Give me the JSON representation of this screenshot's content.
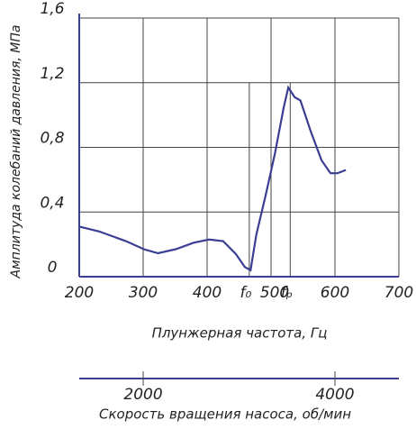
{
  "chart_data": {
    "type": "line",
    "xlabel": "Плунжерная частота, Гц",
    "ylabel": "Амплитуда колебаний давления, МПа",
    "x2label": "Скорость вращения насоса, об/мин",
    "series": [
      {
        "color": "#3b3f94",
        "x": [
          200,
          231,
          273,
          301,
          323,
          351,
          379,
          403,
          425,
          445,
          459,
          468,
          477,
          492,
          506,
          520,
          527,
          537,
          546,
          562,
          579,
          593,
          604,
          617
        ],
        "values": [
          0.31,
          0.28,
          0.22,
          0.17,
          0.145,
          0.17,
          0.21,
          0.23,
          0.22,
          0.14,
          0.06,
          0.04,
          0.26,
          0.51,
          0.76,
          1.05,
          1.17,
          1.11,
          1.09,
          0.9,
          0.72,
          0.64,
          0.64,
          0.66
        ]
      }
    ],
    "xlim": [
      200,
      700
    ],
    "xticks": [
      200,
      300,
      400,
      500,
      600,
      700
    ],
    "ylim": [
      0,
      1.6
    ],
    "yticks": [
      0,
      {
        "value": 0.4,
        "label": "0,4"
      },
      {
        "value": 0.8,
        "label": "0,8"
      },
      {
        "value": 1.2,
        "label": "1,2"
      },
      {
        "value": 1.6,
        "label": "1,6"
      }
    ],
    "x2lim": [
      1333,
      4667
    ],
    "x2ticks": [
      2000,
      4000
    ],
    "annotations": [
      {
        "x": 466,
        "label": "f₀"
      },
      {
        "x": 530,
        "label": "fₚ"
      }
    ],
    "grid": true
  }
}
